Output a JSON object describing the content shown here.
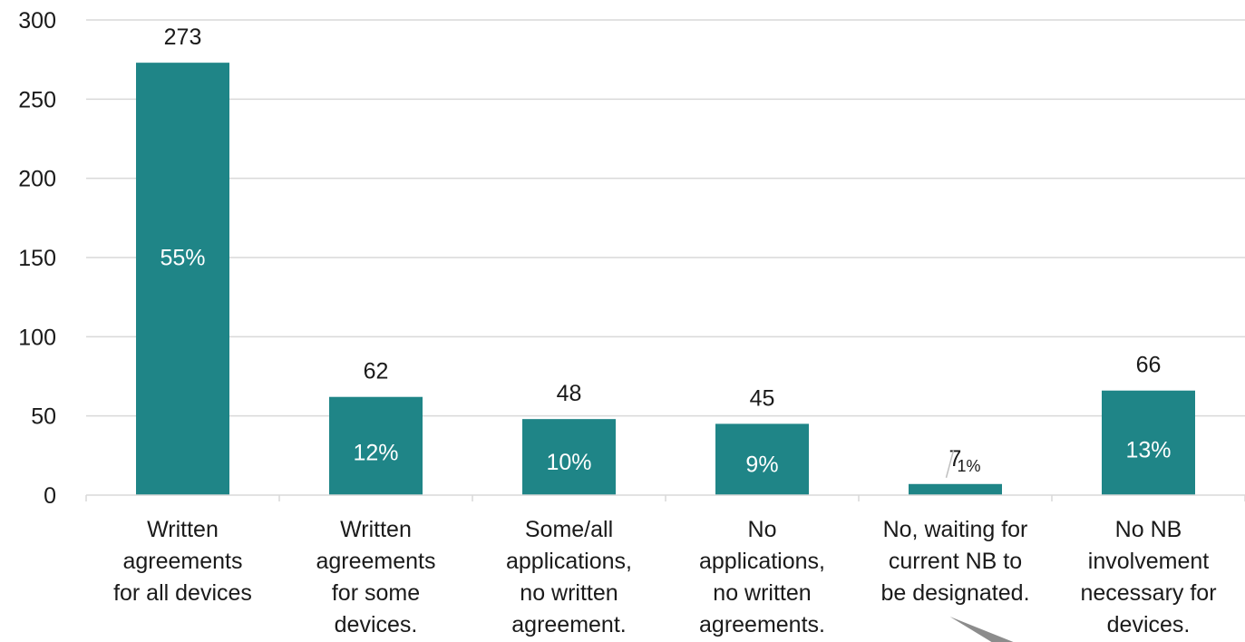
{
  "chart_data": {
    "type": "bar",
    "categories": [
      [
        "Written",
        "agreements",
        "for all devices"
      ],
      [
        "Written",
        "agreements",
        "for some",
        "devices."
      ],
      [
        "Some/all",
        "applications,",
        "no written",
        "agreement."
      ],
      [
        "No",
        "applications,",
        "no written",
        "agreements."
      ],
      [
        "No, waiting for",
        "current NB to",
        "be designated."
      ],
      [
        "No NB",
        "involvement",
        "necessary for",
        "devices."
      ]
    ],
    "values": [
      273,
      62,
      48,
      45,
      7,
      66
    ],
    "value_labels": [
      "273",
      "62",
      "48",
      "45",
      "7",
      "66"
    ],
    "percent_labels": [
      "55%",
      "12%",
      "10%",
      "9%",
      "1%",
      "13%"
    ],
    "ylim": [
      0,
      300
    ],
    "yticks": [
      0,
      50,
      100,
      150,
      200,
      250,
      300
    ],
    "ytick_labels": [
      "0",
      "50",
      "100",
      "150",
      "200",
      "250",
      "300"
    ],
    "grid": true,
    "title": "",
    "xlabel": "",
    "ylabel": "",
    "bar_color": "#1f8587",
    "grid_color": "#d9d9d9",
    "callout_color": "#8c8c8c"
  }
}
